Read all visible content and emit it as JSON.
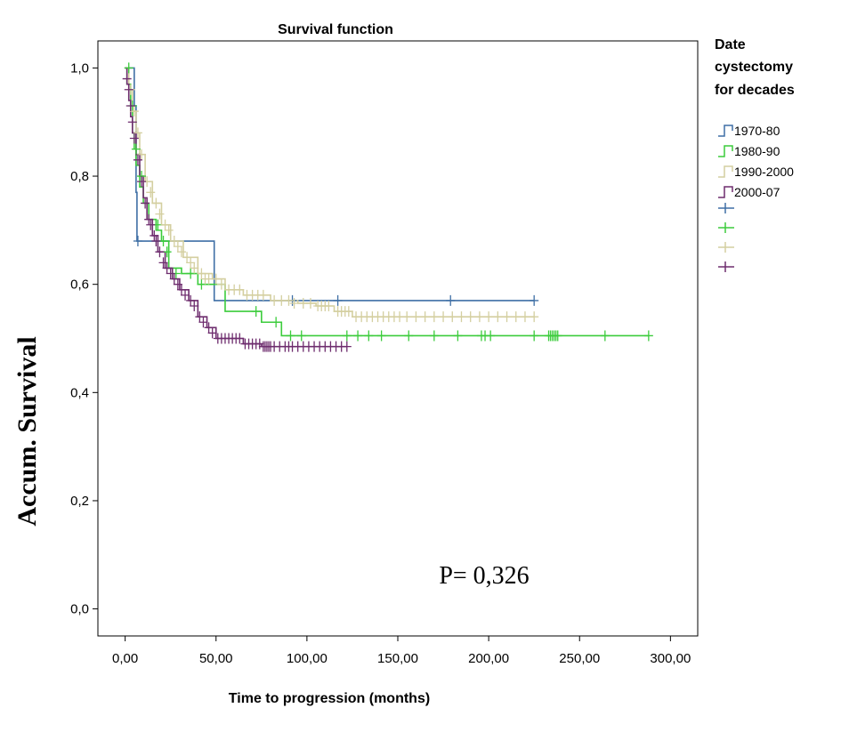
{
  "chart_data": {
    "type": "line",
    "title": "Survival function",
    "xlabel": "Time to progression (months)",
    "ylabel": "Accum. Survival",
    "xlim": [
      -15,
      315
    ],
    "ylim": [
      -0.05,
      1.05
    ],
    "x_ticks": [
      0,
      50,
      100,
      150,
      200,
      250,
      300
    ],
    "x_tick_labels": [
      "0,00",
      "50,00",
      "100,00",
      "150,00",
      "200,00",
      "250,00",
      "300,00"
    ],
    "y_ticks": [
      0,
      0.2,
      0.4,
      0.6,
      0.8,
      1.0
    ],
    "y_tick_labels": [
      "0,0",
      "0,2",
      "0,4",
      "0,6",
      "0,8",
      "1,0"
    ],
    "annotation": "P= 0,326",
    "legend_title": [
      "Date",
      "cystectomy",
      "for decades"
    ],
    "censor_legend_labels": [
      "",
      "",
      "",
      ""
    ],
    "series": [
      {
        "name": "1970-80",
        "color": "#3f6fa5",
        "steps": [
          [
            0,
            1.0
          ],
          [
            5,
            0.93
          ],
          [
            6,
            0.77
          ],
          [
            6.5,
            0.68
          ],
          [
            49,
            0.68
          ],
          [
            49,
            0.57
          ],
          [
            225,
            0.57
          ]
        ],
        "censored": [
          [
            7,
            0.68
          ],
          [
            92,
            0.57
          ],
          [
            117,
            0.57
          ],
          [
            179,
            0.57
          ],
          [
            225,
            0.57
          ]
        ]
      },
      {
        "name": "1980-90",
        "color": "#3ccc3c",
        "steps": [
          [
            0,
            1.0
          ],
          [
            1,
            0.97
          ],
          [
            3,
            0.93
          ],
          [
            4,
            0.88
          ],
          [
            5,
            0.85
          ],
          [
            6,
            0.82
          ],
          [
            8,
            0.78
          ],
          [
            10,
            0.75
          ],
          [
            13,
            0.72
          ],
          [
            17,
            0.7
          ],
          [
            20,
            0.68
          ],
          [
            24,
            0.63
          ],
          [
            31,
            0.62
          ],
          [
            40,
            0.6
          ],
          [
            55,
            0.55
          ],
          [
            75,
            0.53
          ],
          [
            86,
            0.505
          ],
          [
            288,
            0.505
          ]
        ],
        "censored": [
          [
            2,
            1.0
          ],
          [
            4,
            0.93
          ],
          [
            6,
            0.85
          ],
          [
            9,
            0.8
          ],
          [
            18,
            0.71
          ],
          [
            21,
            0.68
          ],
          [
            23,
            0.66
          ],
          [
            28,
            0.62
          ],
          [
            36,
            0.62
          ],
          [
            42,
            0.6
          ],
          [
            72,
            0.55
          ],
          [
            83,
            0.53
          ],
          [
            91,
            0.505
          ],
          [
            97,
            0.505
          ],
          [
            122,
            0.505
          ],
          [
            128,
            0.505
          ],
          [
            134,
            0.505
          ],
          [
            141,
            0.505
          ],
          [
            156,
            0.505
          ],
          [
            170,
            0.505
          ],
          [
            183,
            0.505
          ],
          [
            196,
            0.505
          ],
          [
            198,
            0.505
          ],
          [
            201,
            0.505
          ],
          [
            225,
            0.505
          ],
          [
            233,
            0.505
          ],
          [
            234,
            0.505
          ],
          [
            235,
            0.505
          ],
          [
            236,
            0.505
          ],
          [
            237,
            0.505
          ],
          [
            238,
            0.505
          ],
          [
            264,
            0.505
          ],
          [
            288,
            0.505
          ]
        ]
      },
      {
        "name": "1990-2000",
        "color": "#d4cfa0",
        "steps": [
          [
            0,
            1.0
          ],
          [
            2,
            0.96
          ],
          [
            4,
            0.92
          ],
          [
            6,
            0.88
          ],
          [
            8,
            0.84
          ],
          [
            11,
            0.79
          ],
          [
            15,
            0.75
          ],
          [
            20,
            0.71
          ],
          [
            25,
            0.68
          ],
          [
            32,
            0.65
          ],
          [
            40,
            0.62
          ],
          [
            48,
            0.61
          ],
          [
            55,
            0.59
          ],
          [
            65,
            0.58
          ],
          [
            80,
            0.57
          ],
          [
            95,
            0.565
          ],
          [
            105,
            0.56
          ],
          [
            115,
            0.55
          ],
          [
            125,
            0.54
          ],
          [
            225,
            0.54
          ]
        ],
        "censored": [
          [
            3,
            0.96
          ],
          [
            5,
            0.92
          ],
          [
            7,
            0.88
          ],
          [
            9,
            0.84
          ],
          [
            12,
            0.79
          ],
          [
            14,
            0.77
          ],
          [
            17,
            0.75
          ],
          [
            19,
            0.73
          ],
          [
            22,
            0.71
          ],
          [
            24,
            0.7
          ],
          [
            27,
            0.68
          ],
          [
            29,
            0.67
          ],
          [
            31,
            0.66
          ],
          [
            34,
            0.65
          ],
          [
            36,
            0.64
          ],
          [
            38,
            0.63
          ],
          [
            42,
            0.62
          ],
          [
            44,
            0.61
          ],
          [
            46,
            0.61
          ],
          [
            50,
            0.61
          ],
          [
            53,
            0.6
          ],
          [
            57,
            0.59
          ],
          [
            60,
            0.59
          ],
          [
            63,
            0.59
          ],
          [
            67,
            0.58
          ],
          [
            70,
            0.58
          ],
          [
            73,
            0.58
          ],
          [
            76,
            0.58
          ],
          [
            82,
            0.57
          ],
          [
            86,
            0.57
          ],
          [
            90,
            0.57
          ],
          [
            93,
            0.565
          ],
          [
            98,
            0.565
          ],
          [
            102,
            0.565
          ],
          [
            106,
            0.56
          ],
          [
            108,
            0.56
          ],
          [
            110,
            0.56
          ],
          [
            112,
            0.56
          ],
          [
            117,
            0.55
          ],
          [
            119,
            0.55
          ],
          [
            121,
            0.55
          ],
          [
            123,
            0.55
          ],
          [
            127,
            0.54
          ],
          [
            130,
            0.54
          ],
          [
            133,
            0.54
          ],
          [
            136,
            0.54
          ],
          [
            139,
            0.54
          ],
          [
            142,
            0.54
          ],
          [
            145,
            0.54
          ],
          [
            148,
            0.54
          ],
          [
            151,
            0.54
          ],
          [
            155,
            0.54
          ],
          [
            160,
            0.54
          ],
          [
            165,
            0.54
          ],
          [
            170,
            0.54
          ],
          [
            175,
            0.54
          ],
          [
            180,
            0.54
          ],
          [
            185,
            0.54
          ],
          [
            190,
            0.54
          ],
          [
            195,
            0.54
          ],
          [
            200,
            0.54
          ],
          [
            205,
            0.54
          ],
          [
            210,
            0.54
          ],
          [
            215,
            0.54
          ],
          [
            220,
            0.54
          ],
          [
            225,
            0.54
          ]
        ]
      },
      {
        "name": "2000-07",
        "color": "#6e2d6e",
        "steps": [
          [
            0,
            1.0
          ],
          [
            1,
            0.97
          ],
          [
            2,
            0.94
          ],
          [
            3,
            0.91
          ],
          [
            4,
            0.88
          ],
          [
            6,
            0.84
          ],
          [
            8,
            0.8
          ],
          [
            10,
            0.76
          ],
          [
            12,
            0.72
          ],
          [
            15,
            0.69
          ],
          [
            18,
            0.66
          ],
          [
            22,
            0.63
          ],
          [
            26,
            0.61
          ],
          [
            30,
            0.59
          ],
          [
            35,
            0.57
          ],
          [
            40,
            0.54
          ],
          [
            45,
            0.52
          ],
          [
            50,
            0.5
          ],
          [
            65,
            0.49
          ],
          [
            75,
            0.485
          ],
          [
            122,
            0.485
          ]
        ],
        "censored": [
          [
            1,
            0.98
          ],
          [
            2,
            0.96
          ],
          [
            3,
            0.93
          ],
          [
            4,
            0.9
          ],
          [
            5,
            0.87
          ],
          [
            7,
            0.83
          ],
          [
            9,
            0.79
          ],
          [
            11,
            0.75
          ],
          [
            13,
            0.72
          ],
          [
            14,
            0.71
          ],
          [
            16,
            0.69
          ],
          [
            17,
            0.68
          ],
          [
            19,
            0.66
          ],
          [
            21,
            0.64
          ],
          [
            23,
            0.63
          ],
          [
            25,
            0.62
          ],
          [
            27,
            0.61
          ],
          [
            29,
            0.6
          ],
          [
            31,
            0.59
          ],
          [
            33,
            0.58
          ],
          [
            36,
            0.57
          ],
          [
            38,
            0.56
          ],
          [
            41,
            0.54
          ],
          [
            43,
            0.53
          ],
          [
            46,
            0.52
          ],
          [
            48,
            0.51
          ],
          [
            51,
            0.5
          ],
          [
            53,
            0.5
          ],
          [
            55,
            0.5
          ],
          [
            57,
            0.5
          ],
          [
            59,
            0.5
          ],
          [
            61,
            0.5
          ],
          [
            63,
            0.5
          ],
          [
            66,
            0.49
          ],
          [
            68,
            0.49
          ],
          [
            70,
            0.49
          ],
          [
            72,
            0.49
          ],
          [
            74,
            0.49
          ],
          [
            76,
            0.485
          ],
          [
            77,
            0.485
          ],
          [
            78,
            0.485
          ],
          [
            79,
            0.485
          ],
          [
            80,
            0.485
          ],
          [
            82,
            0.485
          ],
          [
            85,
            0.485
          ],
          [
            88,
            0.485
          ],
          [
            90,
            0.485
          ],
          [
            92,
            0.485
          ],
          [
            95,
            0.485
          ],
          [
            98,
            0.485
          ],
          [
            101,
            0.485
          ],
          [
            104,
            0.485
          ],
          [
            107,
            0.485
          ],
          [
            110,
            0.485
          ],
          [
            113,
            0.485
          ],
          [
            116,
            0.485
          ],
          [
            119,
            0.485
          ],
          [
            122,
            0.485
          ]
        ]
      }
    ]
  }
}
